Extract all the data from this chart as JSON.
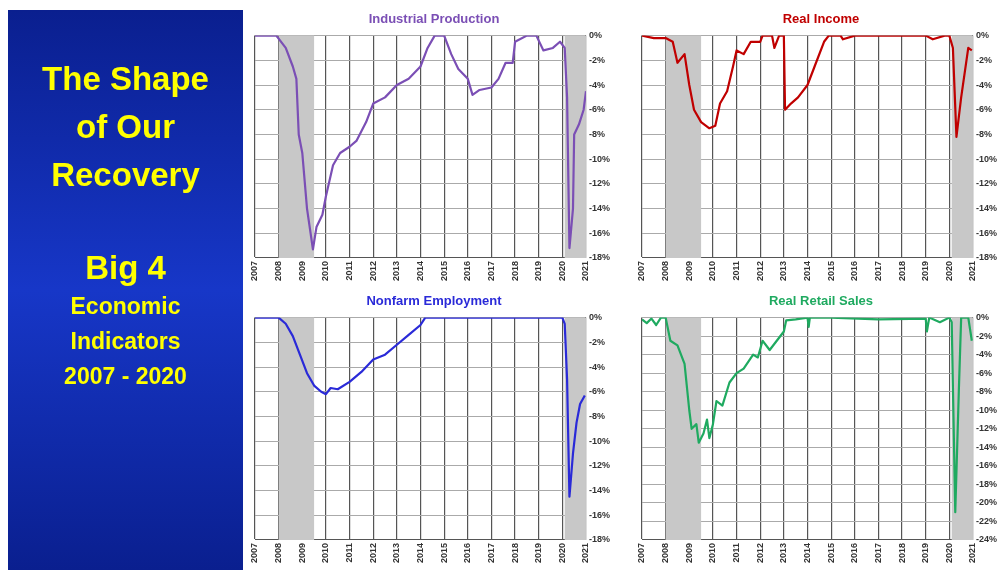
{
  "chart_data": [
    {
      "type": "other",
      "title": "The Shape of Our Recovery",
      "subtitle": "Big 4",
      "annotations": [
        "Economic Indicators 2007 - 2020"
      ]
    },
    {
      "type": "line",
      "title": "Industrial Production",
      "grid": true,
      "xlim": [
        2007,
        2021
      ],
      "ylim": [
        -18,
        0
      ],
      "xticks": [
        2007,
        2008,
        2009,
        2010,
        2011,
        2012,
        2013,
        2014,
        2015,
        2016,
        2017,
        2018,
        2019,
        2020,
        2021
      ],
      "yticks": [
        {
          "value": 0,
          "label": "0%"
        },
        {
          "value": -2,
          "label": "-2%"
        },
        {
          "value": -4,
          "label": "-4%"
        },
        {
          "value": -6,
          "label": "-6%"
        },
        {
          "value": -8,
          "label": "-8%"
        },
        {
          "value": -10,
          "label": "-10%"
        },
        {
          "value": -12,
          "label": "-12%"
        },
        {
          "value": -14,
          "label": "-14%"
        },
        {
          "value": -16,
          "label": "-16%"
        },
        {
          "value": -18,
          "label": "-18%"
        }
      ],
      "bands": [
        {
          "axis": "x",
          "from": 2008,
          "to": 2009.5,
          "color": "#c8c8c8"
        },
        {
          "axis": "x",
          "from": 2020.1,
          "to": 2021,
          "color": "#c8c8c8"
        }
      ],
      "x": [
        2007,
        2007.9,
        2008.3,
        2008.6,
        2008.75,
        2008.85,
        2009,
        2009.2,
        2009.45,
        2009.6,
        2009.85,
        2010,
        2010.3,
        2010.6,
        2011,
        2011.3,
        2011.7,
        2012,
        2012.5,
        2013,
        2013.5,
        2014,
        2014.3,
        2014.6,
        2015,
        2015.3,
        2015.6,
        2016,
        2016.2,
        2016.5,
        2017,
        2017.3,
        2017.6,
        2017.9,
        2018,
        2018.5,
        2018.9,
        2019.2,
        2019.6,
        2019.9,
        2020.1,
        2020.2,
        2020.3,
        2020.45,
        2020.5,
        2020.7,
        2020.9,
        2021
      ],
      "series": [
        {
          "color": "#7b4fb5",
          "values": [
            0,
            0,
            -1,
            -2.5,
            -3.5,
            -8,
            -9.5,
            -14,
            -17.3,
            -15.5,
            -14.5,
            -13,
            -10.5,
            -9.5,
            -9,
            -8.5,
            -7,
            -5.5,
            -5,
            -4,
            -3.5,
            -2.5,
            -1,
            0,
            0,
            -1.5,
            -2.7,
            -3.5,
            -4.8,
            -4.4,
            -4.2,
            -3.5,
            -2.2,
            -2.2,
            -0.5,
            0,
            0,
            -1.2,
            -1,
            -0.5,
            -1,
            -5,
            -17.2,
            -14,
            -8,
            -7.2,
            -6,
            -4.5
          ]
        }
      ]
    },
    {
      "type": "line",
      "title": "Real Income",
      "grid": true,
      "xlim": [
        2007,
        2021
      ],
      "ylim": [
        -18,
        0
      ],
      "xticks": [
        2007,
        2008,
        2009,
        2010,
        2011,
        2012,
        2013,
        2014,
        2015,
        2016,
        2017,
        2018,
        2019,
        2020,
        2021
      ],
      "yticks": [
        {
          "value": 0,
          "label": "0%"
        },
        {
          "value": -2,
          "label": "-2%"
        },
        {
          "value": -4,
          "label": "-4%"
        },
        {
          "value": -6,
          "label": "-6%"
        },
        {
          "value": -8,
          "label": "-8%"
        },
        {
          "value": -10,
          "label": "-10%"
        },
        {
          "value": -12,
          "label": "-12%"
        },
        {
          "value": -14,
          "label": "-14%"
        },
        {
          "value": -16,
          "label": "-16%"
        },
        {
          "value": -18,
          "label": "-18%"
        }
      ],
      "bands": [
        {
          "axis": "x",
          "from": 2008,
          "to": 2009.5,
          "color": "#c8c8c8"
        },
        {
          "axis": "x",
          "from": 2020.1,
          "to": 2021,
          "color": "#c8c8c8"
        }
      ],
      "x": [
        2007,
        2007.5,
        2008,
        2008.3,
        2008.5,
        2008.8,
        2009,
        2009.2,
        2009.5,
        2009.85,
        2010.1,
        2010.3,
        2010.6,
        2010.85,
        2011,
        2011.3,
        2011.6,
        2012,
        2012.1,
        2012.5,
        2012.6,
        2012.8,
        2013,
        2013.05,
        2013.3,
        2013.6,
        2014,
        2014.3,
        2014.7,
        2014.9,
        2015.4,
        2015.5,
        2016,
        2019,
        2019.3,
        2019.8,
        2020,
        2020.15,
        2020.3,
        2020.5,
        2020.8,
        2020.95
      ],
      "series": [
        {
          "color": "#c00000",
          "values": [
            0,
            -0.2,
            -0.2,
            -0.5,
            -2.2,
            -1.5,
            -4,
            -6,
            -7,
            -7.5,
            -7.3,
            -5.5,
            -4.5,
            -2.5,
            -1.2,
            -1.5,
            -0.5,
            -0.5,
            0,
            0,
            -1,
            0,
            0,
            -6,
            -5.5,
            -5,
            -4,
            -2.5,
            -0.5,
            0,
            0,
            -0.3,
            0,
            0,
            -0.3,
            0,
            0,
            -1,
            -8.2,
            -5,
            -1,
            -1.2
          ]
        }
      ]
    },
    {
      "type": "line",
      "title": "Nonfarm Employment",
      "grid": true,
      "xlim": [
        2007,
        2021
      ],
      "ylim": [
        -18,
        0
      ],
      "xticks": [
        2007,
        2008,
        2009,
        2010,
        2011,
        2012,
        2013,
        2014,
        2015,
        2016,
        2017,
        2018,
        2019,
        2020,
        2021
      ],
      "yticks": [
        {
          "value": 0,
          "label": "0%"
        },
        {
          "value": -2,
          "label": "-2%"
        },
        {
          "value": -4,
          "label": "-4%"
        },
        {
          "value": -6,
          "label": "-6%"
        },
        {
          "value": -8,
          "label": "-8%"
        },
        {
          "value": -10,
          "label": "-10%"
        },
        {
          "value": -12,
          "label": "-12%"
        },
        {
          "value": -14,
          "label": "-14%"
        },
        {
          "value": -16,
          "label": "-16%"
        },
        {
          "value": -18,
          "label": "-18%"
        }
      ],
      "bands": [
        {
          "axis": "x",
          "from": 2008,
          "to": 2009.5,
          "color": "#c8c8c8"
        },
        {
          "axis": "x",
          "from": 2020.1,
          "to": 2021,
          "color": "#c8c8c8"
        }
      ],
      "x": [
        2007,
        2008,
        2008.3,
        2008.6,
        2008.9,
        2009.2,
        2009.5,
        2009.8,
        2010,
        2010.2,
        2010.5,
        2011,
        2011.5,
        2012,
        2012.5,
        2013,
        2013.5,
        2014,
        2014.2,
        2020,
        2020.1,
        2020.2,
        2020.3,
        2020.45,
        2020.6,
        2020.75,
        2020.95
      ],
      "series": [
        {
          "color": "#2a2ad8",
          "values": [
            0,
            0,
            -0.5,
            -1.5,
            -3,
            -4.5,
            -5.5,
            -6,
            -6.2,
            -5.7,
            -5.8,
            -5.2,
            -4.4,
            -3.4,
            -3,
            -2.2,
            -1.4,
            -0.6,
            0,
            0,
            -0.5,
            -5,
            -14.5,
            -11,
            -8.5,
            -7,
            -6.3
          ]
        }
      ]
    },
    {
      "type": "line",
      "title": "Real Retail Sales",
      "grid": true,
      "xlim": [
        2007,
        2021
      ],
      "ylim": [
        -24,
        0
      ],
      "xticks": [
        2007,
        2008,
        2009,
        2010,
        2011,
        2012,
        2013,
        2014,
        2015,
        2016,
        2017,
        2018,
        2019,
        2020,
        2021
      ],
      "yticks": [
        {
          "value": 0,
          "label": "0%"
        },
        {
          "value": -2,
          "label": "-2%"
        },
        {
          "value": -4,
          "label": "-4%"
        },
        {
          "value": -6,
          "label": "-6%"
        },
        {
          "value": -8,
          "label": "-8%"
        },
        {
          "value": -10,
          "label": "-10%"
        },
        {
          "value": -12,
          "label": "-12%"
        },
        {
          "value": -14,
          "label": "-14%"
        },
        {
          "value": -16,
          "label": "-16%"
        },
        {
          "value": -18,
          "label": "-18%"
        },
        {
          "value": -20,
          "label": "-20%"
        },
        {
          "value": -22,
          "label": "-22%"
        },
        {
          "value": -24,
          "label": "-24%"
        }
      ],
      "bands": [
        {
          "axis": "x",
          "from": 2008,
          "to": 2009.5,
          "color": "#c8c8c8"
        },
        {
          "axis": "x",
          "from": 2020.1,
          "to": 2021,
          "color": "#c8c8c8"
        }
      ],
      "x": [
        2007,
        2007.2,
        2007.4,
        2007.6,
        2007.8,
        2008,
        2008.2,
        2008.5,
        2008.8,
        2009,
        2009.1,
        2009.3,
        2009.4,
        2009.6,
        2009.75,
        2009.85,
        2010,
        2010.15,
        2010.4,
        2010.7,
        2011,
        2011.3,
        2011.7,
        2011.9,
        2012.1,
        2012.4,
        2012.7,
        2013,
        2013.1,
        2013.5,
        2014,
        2014.05,
        2014.1,
        2015,
        2017,
        2019,
        2019.05,
        2019.15,
        2019.6,
        2020,
        2020.1,
        2020.25,
        2020.4,
        2020.5,
        2020.8,
        2020.95
      ],
      "series": [
        {
          "color": "#1faa60",
          "values": [
            -0.2,
            -0.6,
            -0.1,
            -0.8,
            0,
            0,
            -2.5,
            -3,
            -5,
            -10,
            -12,
            -11.5,
            -13.5,
            -12.5,
            -11,
            -13,
            -11.5,
            -9,
            -9.5,
            -7,
            -6,
            -5.5,
            -4,
            -4.3,
            -2.5,
            -3.5,
            -2.5,
            -1.5,
            -0.3,
            -0.2,
            0,
            -1,
            0,
            0,
            -0.2,
            -0.1,
            -1.5,
            0,
            -0.5,
            0,
            -0.5,
            -21,
            -8,
            0,
            0,
            -2.5
          ]
        }
      ]
    }
  ]
}
